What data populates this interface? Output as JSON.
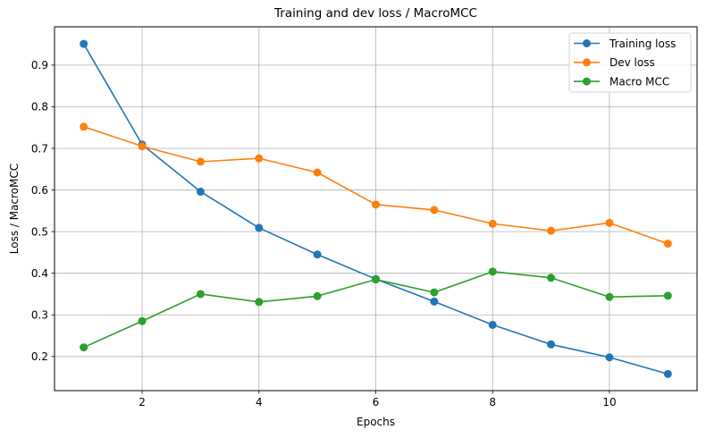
{
  "chart_data": {
    "type": "line",
    "title": "Training and dev loss / MacroMCC",
    "xlabel": "Epochs",
    "ylabel": "Loss / MacroMCC",
    "x": [
      1,
      2,
      3,
      4,
      5,
      6,
      7,
      8,
      9,
      10,
      11
    ],
    "xlim": [
      0.5,
      11.5
    ],
    "ylim": [
      0.118,
      0.992
    ],
    "xticks": [
      2,
      4,
      6,
      8,
      10
    ],
    "xtick_labels": [
      "2",
      "4",
      "6",
      "8",
      "10"
    ],
    "yticks": [
      0.2,
      0.3,
      0.4,
      0.5,
      0.6,
      0.7,
      0.8,
      0.9
    ],
    "ytick_labels": [
      "0.2",
      "0.3",
      "0.4",
      "0.5",
      "0.6",
      "0.7",
      "0.8",
      "0.9"
    ],
    "grid": true,
    "legend_position": "top-right",
    "series": [
      {
        "name": "Training loss",
        "color": "#1f77b4",
        "marker": "circle",
        "values": [
          0.951,
          0.709,
          0.596,
          0.509,
          0.445,
          0.386,
          0.332,
          0.276,
          0.229,
          0.198,
          0.158
        ]
      },
      {
        "name": "Dev loss",
        "color": "#ff7f0e",
        "marker": "circle",
        "values": [
          0.752,
          0.705,
          0.668,
          0.676,
          0.642,
          0.565,
          0.552,
          0.519,
          0.502,
          0.521,
          0.471
        ]
      },
      {
        "name": "Macro MCC",
        "color": "#2ca02c",
        "marker": "circle",
        "values": [
          0.222,
          0.285,
          0.35,
          0.331,
          0.345,
          0.385,
          0.354,
          0.404,
          0.389,
          0.343,
          0.346
        ]
      }
    ]
  }
}
